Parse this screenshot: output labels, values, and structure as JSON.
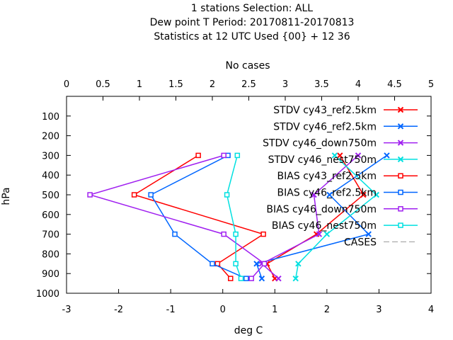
{
  "chart_data": {
    "type": "line",
    "title_lines": [
      "1 stations Selection: ALL",
      "Dew point T  Period: 20170811-20170813",
      "Statistics at 12 UTC  Used {00} + 12 36"
    ],
    "xlabel": "deg C",
    "ylabel": "hPa",
    "x2label": "No cases",
    "xlim": [
      -3,
      4
    ],
    "ylim": [
      1000,
      0
    ],
    "x2lim": [
      0,
      5
    ],
    "xticks": [
      "-3",
      "-2",
      "-1",
      "0",
      "1",
      "2",
      "3",
      "4"
    ],
    "yticks": [
      "100",
      "200",
      "300",
      "400",
      "500",
      "600",
      "700",
      "800",
      "900",
      "1000"
    ],
    "x2ticks": [
      "0",
      "0.5",
      "1",
      "1.5",
      "2",
      "2.5",
      "3",
      "3.5",
      "4",
      "4.5",
      "5"
    ],
    "legend_position": "top-right",
    "series": [
      {
        "name": "STDV cy43_ref2.5km",
        "color": "#ff0000",
        "marker": "x",
        "points": [
          [
            1.0,
            925
          ],
          [
            0.85,
            850
          ],
          [
            1.8,
            700
          ],
          [
            2.7,
            500
          ],
          [
            2.25,
            300
          ]
        ]
      },
      {
        "name": "STDV cy46_ref2.5km",
        "color": "#0066ff",
        "marker": "x",
        "points": [
          [
            0.75,
            925
          ],
          [
            0.65,
            850
          ],
          [
            2.8,
            700
          ],
          [
            2.05,
            500
          ],
          [
            3.15,
            300
          ]
        ]
      },
      {
        "name": "STDV cy46_down750m",
        "color": "#a020f0",
        "marker": "x",
        "points": [
          [
            1.07,
            925
          ],
          [
            0.75,
            850
          ],
          [
            1.85,
            700
          ],
          [
            1.75,
            500
          ],
          [
            2.6,
            300
          ]
        ]
      },
      {
        "name": "STDV cy46_nest750m",
        "color": "#00e0e0",
        "marker": "x",
        "points": [
          [
            1.4,
            925
          ],
          [
            1.45,
            850
          ],
          [
            2.0,
            700
          ],
          [
            2.95,
            500
          ],
          [
            2.15,
            300
          ]
        ]
      },
      {
        "name": "BIAS cy43_ref2.5km",
        "color": "#ff0000",
        "marker": "square",
        "points": [
          [
            0.15,
            925
          ],
          [
            -0.1,
            850
          ],
          [
            0.78,
            700
          ],
          [
            -1.7,
            500
          ],
          [
            -0.47,
            300
          ]
        ]
      },
      {
        "name": "BIAS cy46_ref2.5km",
        "color": "#0066ff",
        "marker": "square",
        "points": [
          [
            0.45,
            925
          ],
          [
            -0.2,
            850
          ],
          [
            -0.92,
            700
          ],
          [
            -1.38,
            500
          ],
          [
            0.1,
            300
          ]
        ]
      },
      {
        "name": "BIAS cy46_down750m",
        "color": "#a020f0",
        "marker": "square",
        "points": [
          [
            0.55,
            925
          ],
          [
            0.8,
            850
          ],
          [
            0.02,
            700
          ],
          [
            -2.55,
            500
          ],
          [
            0.02,
            300
          ]
        ]
      },
      {
        "name": "BIAS cy46_nest750m",
        "color": "#00e0e0",
        "marker": "square",
        "points": [
          [
            0.35,
            925
          ],
          [
            0.25,
            850
          ],
          [
            0.25,
            700
          ],
          [
            0.08,
            500
          ],
          [
            0.28,
            300
          ]
        ]
      },
      {
        "name": "CASES",
        "color": "#999999",
        "marker": "none",
        "dashed": true,
        "points": []
      }
    ]
  }
}
